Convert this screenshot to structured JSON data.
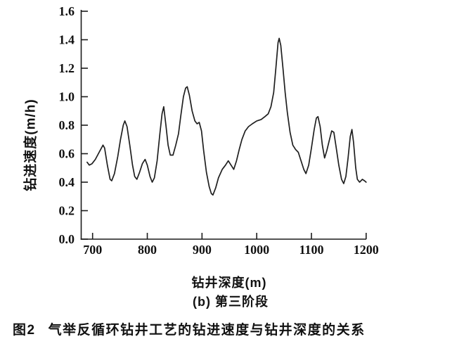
{
  "figure": {
    "caption_prefix": "图2",
    "caption_text": "气举反循环钻井工艺的钻进速度与钻井深度的关系"
  },
  "chart_data": {
    "type": "line",
    "title": "",
    "xlabel": "钻井深度(m)",
    "ylabel": "钻进速度(m/h)",
    "subtitle": "(b) 第三阶段",
    "xlim": [
      678,
      1205
    ],
    "ylim": [
      0.0,
      1.6
    ],
    "x_ticks": [
      700,
      800,
      900,
      1000,
      1100,
      1200
    ],
    "y_ticks": [
      0.0,
      0.2,
      0.4,
      0.6,
      0.8,
      1.0,
      1.2,
      1.4,
      1.6
    ],
    "grid": false,
    "legend": "none",
    "line_color": "#1f1f1f",
    "series": [
      {
        "name": "钻进速度",
        "x": [
          690,
          694,
          699,
          705,
          712,
          719,
          722,
          727,
          732,
          735,
          740,
          746,
          751,
          756,
          759,
          763,
          768,
          773,
          777,
          781,
          786,
          791,
          796,
          800,
          805,
          809,
          813,
          818,
          823,
          827,
          830,
          834,
          838,
          842,
          847,
          852,
          857,
          861,
          866,
          870,
          873,
          877,
          882,
          887,
          891,
          895,
          899,
          903,
          908,
          913,
          917,
          920,
          925,
          930,
          937,
          943,
          948,
          953,
          958,
          963,
          968,
          973,
          979,
          985,
          992,
          1000,
          1008,
          1015,
          1021,
          1026,
          1031,
          1035,
          1039,
          1041,
          1044,
          1048,
          1052,
          1056,
          1061,
          1066,
          1071,
          1076,
          1081,
          1086,
          1090,
          1095,
          1100,
          1105,
          1109,
          1112,
          1116,
          1120,
          1124,
          1128,
          1133,
          1137,
          1141,
          1145,
          1150,
          1155,
          1159,
          1163,
          1167,
          1171,
          1174,
          1177,
          1181,
          1184,
          1188,
          1193,
          1197,
          1200
        ],
        "y": [
          0.54,
          0.52,
          0.53,
          0.56,
          0.61,
          0.66,
          0.64,
          0.52,
          0.42,
          0.41,
          0.46,
          0.58,
          0.7,
          0.8,
          0.83,
          0.79,
          0.66,
          0.52,
          0.44,
          0.42,
          0.47,
          0.53,
          0.56,
          0.52,
          0.44,
          0.4,
          0.43,
          0.55,
          0.74,
          0.88,
          0.93,
          0.8,
          0.66,
          0.59,
          0.59,
          0.66,
          0.74,
          0.86,
          1.0,
          1.06,
          1.07,
          1.01,
          0.9,
          0.83,
          0.81,
          0.82,
          0.76,
          0.62,
          0.47,
          0.37,
          0.32,
          0.31,
          0.36,
          0.43,
          0.49,
          0.52,
          0.55,
          0.52,
          0.49,
          0.55,
          0.63,
          0.7,
          0.76,
          0.79,
          0.81,
          0.83,
          0.84,
          0.86,
          0.88,
          0.93,
          1.03,
          1.2,
          1.38,
          1.41,
          1.36,
          1.2,
          1.03,
          0.89,
          0.75,
          0.66,
          0.63,
          0.61,
          0.55,
          0.49,
          0.46,
          0.52,
          0.64,
          0.77,
          0.85,
          0.86,
          0.79,
          0.66,
          0.57,
          0.62,
          0.7,
          0.76,
          0.75,
          0.65,
          0.52,
          0.42,
          0.39,
          0.44,
          0.57,
          0.72,
          0.77,
          0.68,
          0.5,
          0.42,
          0.4,
          0.42,
          0.41,
          0.4
        ]
      }
    ]
  }
}
